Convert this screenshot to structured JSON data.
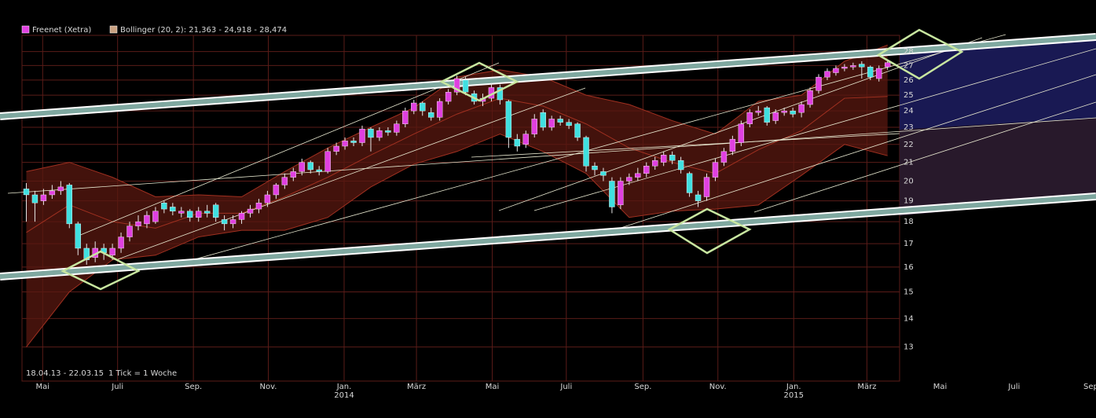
{
  "chart_data": {
    "type": "candlestick",
    "series": [
      {
        "name": "Freenet (Xetra)",
        "color": "#e040e0",
        "down_color": "#40e0e0",
        "x": [
          0,
          1,
          2,
          3,
          4,
          5,
          6,
          7,
          8,
          9,
          10,
          11,
          12,
          13,
          14,
          15,
          16,
          17,
          18,
          19,
          20,
          21,
          22,
          23,
          24,
          25,
          26,
          27,
          28,
          29,
          30,
          31,
          32,
          33,
          34,
          35,
          36,
          37,
          38,
          39,
          40,
          41,
          42,
          43,
          44,
          45,
          46,
          47,
          48,
          49,
          50,
          51,
          52,
          53,
          54,
          55,
          56,
          57,
          58,
          59,
          60,
          61,
          62,
          63,
          64,
          65,
          66,
          67,
          68,
          69,
          70,
          71,
          72,
          73,
          74,
          75,
          76,
          77,
          78,
          79,
          80,
          81,
          82,
          83,
          84,
          85,
          86,
          87,
          88,
          89,
          90,
          91,
          92,
          93,
          94,
          95,
          96,
          97,
          98,
          99,
          100
        ],
        "open": [
          19.6,
          19.3,
          19.0,
          19.3,
          19.5,
          19.8,
          17.9,
          16.8,
          16.4,
          16.8,
          16.5,
          16.8,
          17.3,
          17.8,
          17.9,
          18.0,
          18.9,
          18.7,
          18.4,
          18.5,
          18.2,
          18.5,
          18.8,
          18.1,
          17.9,
          18.1,
          18.4,
          18.6,
          18.9,
          19.3,
          19.8,
          20.2,
          20.5,
          21.0,
          20.6,
          20.5,
          21.6,
          21.9,
          22.2,
          22.1,
          22.9,
          22.4,
          22.8,
          22.7,
          23.2,
          24.0,
          24.5,
          23.9,
          23.6,
          24.6,
          25.2,
          26.0,
          25.1,
          24.6,
          24.8,
          25.5,
          24.6,
          22.3,
          22.0,
          22.6,
          23.9,
          23.0,
          23.5,
          23.3,
          23.2,
          22.4,
          20.8,
          20.5,
          20.0,
          18.8,
          20.0,
          20.2,
          20.4,
          20.8,
          21.0,
          21.4,
          21.1,
          20.4,
          19.3,
          19.2,
          20.2,
          21.0,
          21.6,
          22.1,
          23.2,
          23.9,
          24.2,
          23.4,
          23.9,
          24.0,
          23.9,
          24.4,
          25.3,
          26.2,
          26.5,
          26.8,
          26.9,
          27.1,
          26.9,
          26.1,
          26.9
        ],
        "high": [
          19.9,
          19.5,
          19.6,
          19.8,
          20.0,
          19.9,
          18.0,
          17.0,
          17.1,
          17.0,
          17.0,
          17.5,
          18.0,
          18.3,
          18.5,
          18.7,
          19.0,
          18.9,
          18.7,
          18.6,
          18.7,
          18.8,
          18.9,
          18.3,
          18.3,
          18.5,
          18.8,
          19.1,
          19.5,
          19.9,
          20.4,
          20.7,
          21.2,
          21.1,
          20.8,
          21.8,
          22.1,
          22.4,
          22.4,
          23.1,
          23.0,
          23.0,
          23.0,
          23.4,
          24.2,
          24.7,
          24.6,
          24.2,
          24.8,
          25.4,
          26.3,
          26.2,
          25.3,
          25.1,
          25.8,
          25.7,
          24.7,
          22.6,
          22.8,
          23.8,
          24.1,
          23.7,
          23.7,
          23.5,
          23.3,
          22.5,
          21.0,
          20.7,
          20.2,
          20.2,
          20.4,
          20.7,
          21.0,
          21.3,
          21.6,
          21.6,
          21.3,
          20.5,
          19.5,
          20.4,
          21.2,
          21.8,
          22.5,
          23.4,
          24.1,
          24.3,
          24.3,
          24.1,
          24.2,
          24.2,
          24.6,
          25.5,
          26.4,
          26.8,
          27.0,
          27.1,
          27.2,
          27.3,
          27.0,
          27.0,
          27.4
        ],
        "low": [
          18.0,
          18.0,
          18.8,
          19.1,
          19.3,
          17.7,
          16.5,
          16.1,
          16.2,
          16.3,
          16.3,
          16.6,
          17.1,
          17.6,
          17.7,
          17.9,
          18.4,
          18.3,
          18.2,
          18.0,
          18.0,
          18.2,
          18.0,
          17.6,
          17.7,
          17.9,
          18.2,
          18.4,
          18.7,
          19.1,
          19.6,
          20.0,
          20.3,
          20.4,
          20.3,
          20.4,
          21.4,
          21.7,
          21.9,
          21.9,
          21.6,
          22.2,
          22.5,
          22.5,
          23.0,
          23.8,
          23.7,
          23.4,
          23.4,
          24.4,
          25.0,
          25.0,
          24.4,
          24.3,
          24.6,
          24.4,
          21.8,
          21.6,
          21.8,
          22.4,
          22.8,
          22.8,
          23.1,
          22.9,
          22.2,
          20.5,
          20.3,
          20.0,
          18.4,
          18.6,
          19.8,
          20.0,
          20.2,
          20.6,
          20.8,
          20.9,
          20.4,
          19.2,
          18.7,
          19.0,
          20.0,
          20.8,
          21.4,
          21.9,
          23.0,
          23.7,
          23.1,
          23.2,
          23.7,
          23.6,
          23.6,
          24.2,
          25.1,
          26.0,
          26.3,
          26.6,
          26.7,
          26.1,
          26.0,
          25.9,
          26.7
        ],
        "close": [
          19.3,
          18.9,
          19.3,
          19.5,
          19.7,
          17.9,
          16.8,
          16.3,
          16.8,
          16.6,
          16.8,
          17.3,
          17.8,
          18.0,
          18.3,
          18.5,
          18.6,
          18.5,
          18.5,
          18.2,
          18.5,
          18.4,
          18.2,
          17.9,
          18.1,
          18.4,
          18.6,
          18.9,
          19.3,
          19.8,
          20.2,
          20.5,
          21.0,
          20.6,
          20.5,
          21.6,
          21.9,
          22.2,
          22.1,
          22.9,
          22.4,
          22.8,
          22.7,
          23.2,
          24.0,
          24.5,
          24.0,
          23.6,
          24.6,
          25.2,
          26.1,
          25.2,
          24.6,
          24.8,
          25.5,
          24.7,
          22.4,
          21.9,
          22.6,
          23.5,
          23.0,
          23.5,
          23.3,
          23.1,
          22.4,
          20.8,
          20.6,
          20.3,
          18.7,
          20.0,
          20.2,
          20.4,
          20.8,
          21.1,
          21.4,
          21.1,
          20.6,
          19.4,
          19.0,
          20.2,
          21.0,
          21.6,
          22.3,
          23.2,
          23.9,
          24.0,
          23.3,
          23.9,
          24.0,
          23.8,
          24.4,
          25.3,
          26.2,
          26.6,
          26.8,
          26.9,
          27.0,
          26.9,
          26.2,
          26.8,
          27.2
        ]
      }
    ],
    "bollinger": {
      "name": "Bollinger (20, 2): 21,363 - 24,918 - 28,474",
      "color": "#c8a080",
      "line_color": "#a03020",
      "fill": "#5a1810",
      "x": [
        0,
        5,
        10,
        15,
        20,
        25,
        30,
        35,
        40,
        45,
        50,
        55,
        60,
        65,
        70,
        75,
        80,
        85,
        90,
        95,
        100
      ],
      "upper": [
        20.5,
        21.0,
        20.2,
        19.2,
        19.3,
        19.2,
        20.5,
        21.8,
        23.0,
        24.2,
        26.2,
        26.7,
        26.2,
        25.0,
        24.4,
        23.4,
        22.6,
        24.6,
        25.0,
        27.3,
        28.474
      ],
      "middle": [
        17.5,
        18.8,
        18.0,
        17.7,
        18.4,
        18.4,
        19.2,
        20.2,
        21.4,
        22.6,
        23.8,
        24.8,
        24.3,
        23.2,
        21.8,
        21.0,
        20.4,
        21.7,
        22.8,
        24.8,
        24.918
      ],
      "lower": [
        13.0,
        15.0,
        16.3,
        16.5,
        17.3,
        17.6,
        17.6,
        18.2,
        19.7,
        20.9,
        21.6,
        22.6,
        21.6,
        20.4,
        18.2,
        18.5,
        18.6,
        18.8,
        20.3,
        22.0,
        21.363
      ]
    },
    "date_range": "18.04.13 - 22.03.15",
    "tick_note": "1 Tick = 1 Woche",
    "log_scale": true,
    "grid": true,
    "ylim": [
      11.9,
      29.2
    ],
    "yticks": [
      13,
      14,
      15,
      16,
      17,
      18,
      19,
      20,
      21,
      22,
      23,
      24,
      25,
      26,
      27,
      28
    ],
    "xlim": [
      -0.5,
      124.2
    ],
    "xticks": [
      {
        "value": 1.9,
        "label": "Mai"
      },
      {
        "value": 10.6,
        "label": "Juli"
      },
      {
        "value": 19.4,
        "label": "Sep."
      },
      {
        "value": 28.1,
        "label": "Nov."
      },
      {
        "value": 36.9,
        "label": "Jan."
      },
      {
        "value": 45.3,
        "label": "März"
      },
      {
        "value": 54.1,
        "label": "Mai"
      },
      {
        "value": 62.7,
        "label": "Juli"
      },
      {
        "value": 71.6,
        "label": "Sep."
      },
      {
        "value": 80.3,
        "label": "Nov."
      },
      {
        "value": 89.1,
        "label": "Jan."
      },
      {
        "value": 97.6,
        "label": "März"
      },
      {
        "value": 106.1,
        "label": "Mai"
      },
      {
        "value": 114.7,
        "label": "Juli"
      },
      {
        "value": 123.6,
        "label": "Sep"
      }
    ],
    "x_year_labels": [
      {
        "value": 36.9,
        "label": "2014"
      },
      {
        "value": 89.1,
        "label": "2015"
      }
    ]
  }
}
